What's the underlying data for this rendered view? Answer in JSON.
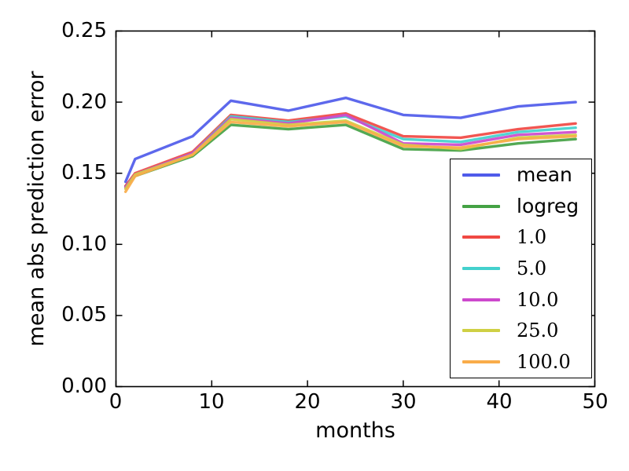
{
  "chart_data": {
    "type": "line",
    "title": "",
    "xlabel": "months",
    "ylabel": "mean abs prediction error",
    "xlim": [
      0,
      50
    ],
    "ylim": [
      0,
      0.25
    ],
    "xticks": [
      0,
      10,
      20,
      30,
      40,
      50
    ],
    "yticks": [
      0.25,
      0.2,
      0.15,
      0.1,
      0.05,
      0.0
    ],
    "xtick_labels": [
      "0",
      "10",
      "20",
      "30",
      "40",
      "50"
    ],
    "ytick_labels": [
      "0.25",
      "0.20",
      "0.15",
      "0.10",
      "0.05",
      "0.00"
    ],
    "grid": false,
    "legend_position": "right-inside",
    "x": [
      1,
      2,
      8,
      12,
      18,
      24,
      30,
      36,
      42,
      48
    ],
    "series": [
      {
        "name": "mean",
        "label": "mean",
        "color": "#4f5bea",
        "values": [
          0.144,
          0.16,
          0.176,
          0.201,
          0.194,
          0.203,
          0.191,
          0.189,
          0.197,
          0.2
        ]
      },
      {
        "name": "logreg",
        "label": "logreg",
        "color": "#44a244",
        "values": [
          0.141,
          0.148,
          0.162,
          0.184,
          0.181,
          0.184,
          0.167,
          0.166,
          0.171,
          0.174
        ]
      },
      {
        "name": "1.0",
        "label": "1.0",
        "color": "#f04843",
        "values": [
          0.141,
          0.15,
          0.165,
          0.191,
          0.187,
          0.192,
          0.176,
          0.175,
          0.181,
          0.185
        ]
      },
      {
        "name": "5.0",
        "label": "5.0",
        "color": "#43d1cd",
        "values": [
          0.14,
          0.149,
          0.164,
          0.19,
          0.186,
          0.19,
          0.174,
          0.172,
          0.179,
          0.182
        ]
      },
      {
        "name": "10.0",
        "label": "10.0",
        "color": "#cd49cd",
        "values": [
          0.14,
          0.149,
          0.164,
          0.189,
          0.185,
          0.191,
          0.171,
          0.17,
          0.177,
          0.179
        ]
      },
      {
        "name": "25.0",
        "label": "25.0",
        "color": "#cfd044",
        "values": [
          0.139,
          0.149,
          0.163,
          0.188,
          0.184,
          0.187,
          0.17,
          0.167,
          0.175,
          0.177
        ]
      },
      {
        "name": "100.0",
        "label": "100.0",
        "color": "#f9ac4a",
        "values": [
          0.137,
          0.148,
          0.163,
          0.186,
          0.183,
          0.186,
          0.169,
          0.168,
          0.174,
          0.176
        ]
      }
    ]
  }
}
